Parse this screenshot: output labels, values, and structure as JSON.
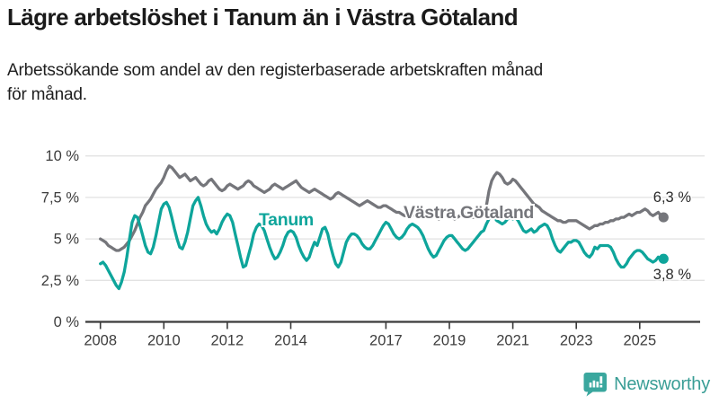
{
  "header": {
    "title": "Lägre arbetslöshet i Tanum än i Västra Götaland",
    "subtitle_line1": "Arbetssökande som andel av den registerbaserade arbetskraften månad",
    "subtitle_line2": "för månad."
  },
  "chart_data": {
    "type": "line",
    "title": "Lägre arbetslöshet i Tanum än i Västra Götaland",
    "xlabel": "",
    "ylabel": "",
    "unit": "%",
    "x_start": "2008-01",
    "x_end": "2025-10",
    "points_per_year": 12,
    "ylim": [
      0,
      10.5
    ],
    "grid": "horizontal",
    "y_ticks": [
      {
        "value": 0,
        "label": "0 %"
      },
      {
        "value": 2.5,
        "label": "2,5 %"
      },
      {
        "value": 5,
        "label": "5 %"
      },
      {
        "value": 7.5,
        "label": "7,5 %"
      },
      {
        "value": 10,
        "label": "10 %"
      }
    ],
    "x_ticks": [
      {
        "year": 2008,
        "label": "2008"
      },
      {
        "year": 2010,
        "label": "2010"
      },
      {
        "year": 2012,
        "label": "2012"
      },
      {
        "year": 2014,
        "label": "2014"
      },
      {
        "year": 2017,
        "label": "2017"
      },
      {
        "year": 2019,
        "label": "2019"
      },
      {
        "year": 2021,
        "label": "2021"
      },
      {
        "year": 2023,
        "label": "2023"
      },
      {
        "year": 2025,
        "label": "2025"
      }
    ],
    "series": [
      {
        "name": "Västra Götaland",
        "color": "#75767b",
        "end_label": "6,3 %",
        "values": [
          5.0,
          4.9,
          4.8,
          4.6,
          4.5,
          4.4,
          4.3,
          4.3,
          4.4,
          4.5,
          4.7,
          4.9,
          5.2,
          5.5,
          5.9,
          6.3,
          6.6,
          7.0,
          7.2,
          7.4,
          7.7,
          8.0,
          8.2,
          8.4,
          8.7,
          9.1,
          9.4,
          9.3,
          9.1,
          8.9,
          8.7,
          8.8,
          8.9,
          8.7,
          8.5,
          8.6,
          8.7,
          8.5,
          8.3,
          8.2,
          8.3,
          8.5,
          8.6,
          8.4,
          8.2,
          8.0,
          7.9,
          8.0,
          8.2,
          8.3,
          8.2,
          8.1,
          8.0,
          8.1,
          8.2,
          8.4,
          8.5,
          8.4,
          8.2,
          8.1,
          8.0,
          7.9,
          7.8,
          7.9,
          8.0,
          8.2,
          8.3,
          8.2,
          8.1,
          8.0,
          8.1,
          8.2,
          8.3,
          8.4,
          8.5,
          8.3,
          8.1,
          8.0,
          7.9,
          7.8,
          7.9,
          8.0,
          7.9,
          7.8,
          7.7,
          7.6,
          7.5,
          7.4,
          7.5,
          7.7,
          7.8,
          7.7,
          7.6,
          7.5,
          7.4,
          7.3,
          7.2,
          7.1,
          7.0,
          7.1,
          7.2,
          7.3,
          7.2,
          7.1,
          7.0,
          6.9,
          6.9,
          7.0,
          7.0,
          6.9,
          6.8,
          6.7,
          6.6,
          6.6,
          6.5,
          6.4,
          6.4,
          6.5,
          6.5,
          6.4,
          6.4,
          6.3,
          6.3,
          6.4,
          6.4,
          6.5,
          6.4,
          6.3,
          6.2,
          6.3,
          6.4,
          6.4,
          6.3,
          6.3,
          6.2,
          6.3,
          6.4,
          6.5,
          6.5,
          6.4,
          6.3,
          6.3,
          6.4,
          6.4,
          6.5,
          6.5,
          7.0,
          7.9,
          8.5,
          8.8,
          9.0,
          8.9,
          8.7,
          8.4,
          8.3,
          8.4,
          8.6,
          8.5,
          8.3,
          8.1,
          7.9,
          7.7,
          7.5,
          7.3,
          7.1,
          7.0,
          6.9,
          6.7,
          6.6,
          6.5,
          6.4,
          6.3,
          6.2,
          6.1,
          6.1,
          6.0,
          6.0,
          6.1,
          6.1,
          6.1,
          6.1,
          6.0,
          5.9,
          5.8,
          5.7,
          5.6,
          5.7,
          5.8,
          5.8,
          5.9,
          5.9,
          6.0,
          6.0,
          6.1,
          6.1,
          6.2,
          6.2,
          6.3,
          6.3,
          6.4,
          6.5,
          6.4,
          6.5,
          6.6,
          6.6,
          6.7,
          6.8,
          6.7,
          6.5,
          6.4,
          6.5,
          6.6,
          6.4,
          6.3
        ]
      },
      {
        "name": "Tanum",
        "color": "#0ea59b",
        "end_label": "3,8 %",
        "values": [
          3.5,
          3.6,
          3.4,
          3.1,
          2.8,
          2.5,
          2.2,
          2.0,
          2.4,
          3.0,
          3.9,
          5.0,
          6.0,
          6.4,
          6.3,
          5.8,
          5.2,
          4.6,
          4.2,
          4.1,
          4.5,
          5.2,
          6.0,
          6.8,
          7.1,
          7.2,
          6.9,
          6.3,
          5.6,
          5.0,
          4.5,
          4.4,
          4.8,
          5.4,
          6.2,
          7.0,
          7.3,
          7.5,
          7.0,
          6.4,
          5.9,
          5.6,
          5.4,
          5.5,
          5.3,
          5.6,
          6.0,
          6.3,
          6.5,
          6.4,
          6.0,
          5.3,
          4.6,
          3.9,
          3.3,
          3.4,
          4.0,
          4.6,
          5.3,
          5.7,
          5.9,
          5.8,
          5.5,
          5.0,
          4.5,
          4.1,
          3.8,
          3.9,
          4.2,
          4.6,
          5.1,
          5.4,
          5.5,
          5.4,
          5.1,
          4.6,
          4.2,
          3.9,
          3.7,
          3.9,
          4.4,
          4.8,
          4.6,
          5.1,
          5.6,
          5.7,
          5.3,
          4.6,
          4.0,
          3.5,
          3.3,
          3.6,
          4.2,
          4.8,
          5.1,
          5.3,
          5.3,
          5.2,
          5.0,
          4.7,
          4.5,
          4.4,
          4.4,
          4.6,
          4.9,
          5.2,
          5.5,
          5.8,
          6.0,
          5.9,
          5.6,
          5.3,
          5.1,
          5.0,
          5.1,
          5.3,
          5.6,
          5.8,
          5.9,
          5.8,
          5.7,
          5.5,
          5.2,
          4.8,
          4.4,
          4.1,
          3.9,
          4.0,
          4.3,
          4.6,
          4.9,
          5.1,
          5.2,
          5.2,
          5.0,
          4.8,
          4.6,
          4.4,
          4.3,
          4.4,
          4.6,
          4.8,
          5.0,
          5.2,
          5.4,
          5.5,
          5.9,
          6.2,
          6.4,
          6.3,
          6.1,
          6.0,
          5.9,
          6.0,
          6.2,
          6.3,
          6.2,
          6.3,
          6.1,
          5.8,
          5.5,
          5.4,
          5.5,
          5.6,
          5.4,
          5.5,
          5.7,
          5.8,
          5.9,
          5.8,
          5.5,
          5.0,
          4.6,
          4.3,
          4.2,
          4.4,
          4.6,
          4.8,
          4.8,
          4.9,
          4.9,
          4.8,
          4.5,
          4.2,
          4.0,
          3.9,
          4.1,
          4.5,
          4.4,
          4.6,
          4.6,
          4.6,
          4.6,
          4.5,
          4.2,
          3.8,
          3.5,
          3.3,
          3.3,
          3.5,
          3.8,
          4.0,
          4.2,
          4.3,
          4.3,
          4.2,
          4.0,
          3.8,
          3.7,
          3.6,
          3.7,
          3.9,
          3.7,
          3.8
        ]
      }
    ],
    "legend_position": "inline-labels"
  },
  "branding": {
    "logo_text": "Newsworthy"
  },
  "colors": {
    "tanum": "#0ea59b",
    "vastra_gotaland": "#75767b",
    "grid": "#e2e2e2",
    "axis": "#3a3a3a",
    "axis_text": "#3d3d3d",
    "logo": "#3a9e96"
  }
}
